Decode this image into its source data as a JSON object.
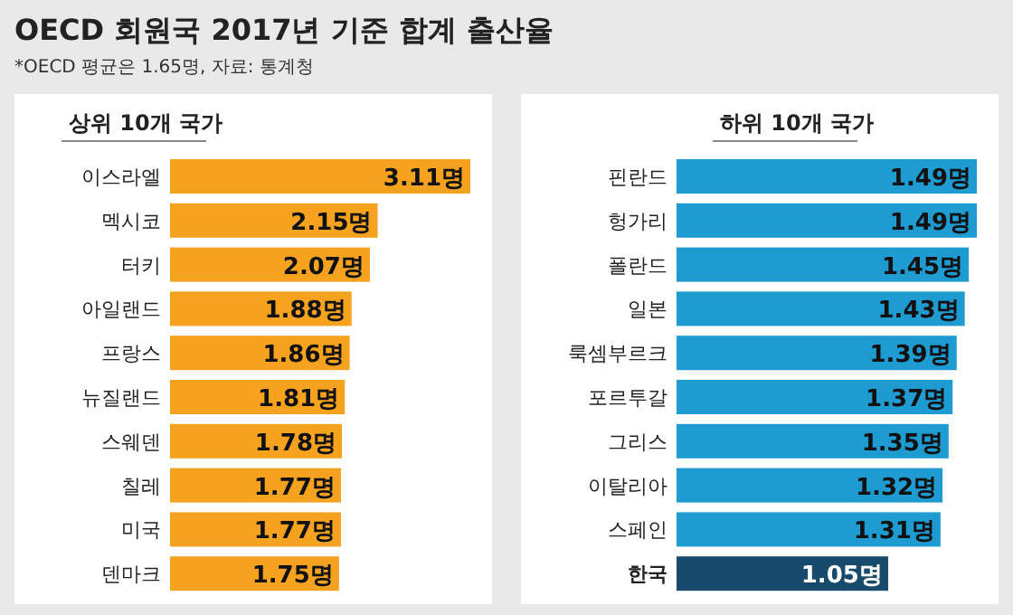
{
  "chart_data": [
    {
      "type": "bar",
      "orientation": "horizontal",
      "title": "OECD 회원국 2017년 기준 합계 출산율",
      "annotations": [
        "*OECD 평균은 1.65명, 자료: 통계청"
      ],
      "subtitle": "상위 10개 국가",
      "categories": [
        "이스라엘",
        "멕시코",
        "터키",
        "아일랜드",
        "프랑스",
        "뉴질랜드",
        "스웨덴",
        "칠레",
        "미국",
        "덴마크"
      ],
      "values": [
        3.11,
        2.15,
        2.07,
        1.88,
        1.86,
        1.81,
        1.78,
        1.77,
        1.77,
        1.75
      ],
      "value_labels": [
        "3.11명",
        "2.15명",
        "2.07명",
        "1.88명",
        "1.86명",
        "1.81명",
        "1.78명",
        "1.77명",
        "1.77명",
        "1.75명"
      ],
      "color": "#f5a21f"
    },
    {
      "type": "bar",
      "orientation": "horizontal",
      "subtitle": "하위 10개 국가",
      "categories": [
        "핀란드",
        "헝가리",
        "폴란드",
        "일본",
        "룩셈부르크",
        "포르투갈",
        "그리스",
        "이탈리아",
        "스페인",
        "한국"
      ],
      "values": [
        1.49,
        1.49,
        1.45,
        1.43,
        1.39,
        1.37,
        1.35,
        1.32,
        1.31,
        1.05
      ],
      "value_labels": [
        "1.49명",
        "1.49명",
        "1.45명",
        "1.43명",
        "1.39명",
        "1.37명",
        "1.35명",
        "1.32명",
        "1.31명",
        "1.05명"
      ],
      "colors": [
        "#1e9bd0",
        "#1e9bd0",
        "#1e9bd0",
        "#1e9bd0",
        "#1e9bd0",
        "#1e9bd0",
        "#1e9bd0",
        "#1e9bd0",
        "#1e9bd0",
        "#174a6b"
      ]
    }
  ]
}
